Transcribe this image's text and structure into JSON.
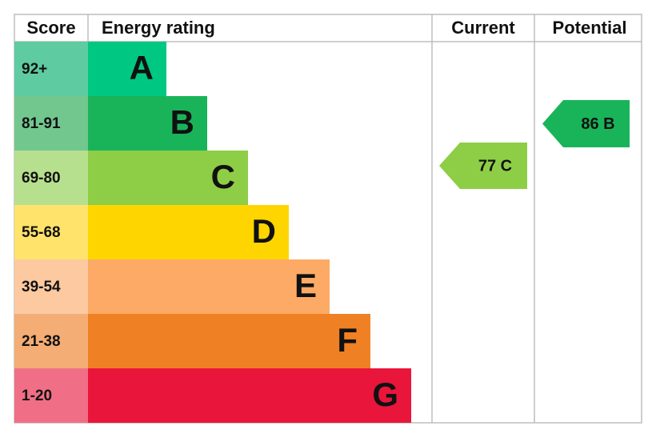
{
  "headers": {
    "score": "Score",
    "rating": "Energy rating",
    "current": "Current",
    "potential": "Potential"
  },
  "bands": [
    {
      "score": "92+",
      "letter": "A",
      "color": "#00c781",
      "score_color": "#5fcba0"
    },
    {
      "score": "81-91",
      "letter": "B",
      "color": "#19b459",
      "score_color": "#72c78f"
    },
    {
      "score": "69-80",
      "letter": "C",
      "color": "#8dce46",
      "score_color": "#b7e08e"
    },
    {
      "score": "55-68",
      "letter": "D",
      "color": "#ffd500",
      "score_color": "#ffe36a"
    },
    {
      "score": "39-54",
      "letter": "E",
      "color": "#fcaa65",
      "score_color": "#fcc9a0"
    },
    {
      "score": "21-38",
      "letter": "F",
      "color": "#ef8023",
      "score_color": "#f4ad74"
    },
    {
      "score": "1-20",
      "letter": "G",
      "color": "#e9153b",
      "score_color": "#f06f86"
    }
  ],
  "current": {
    "label": "77 C",
    "color": "#8dce46"
  },
  "potential": {
    "label": "86 B",
    "color": "#19b459"
  }
}
